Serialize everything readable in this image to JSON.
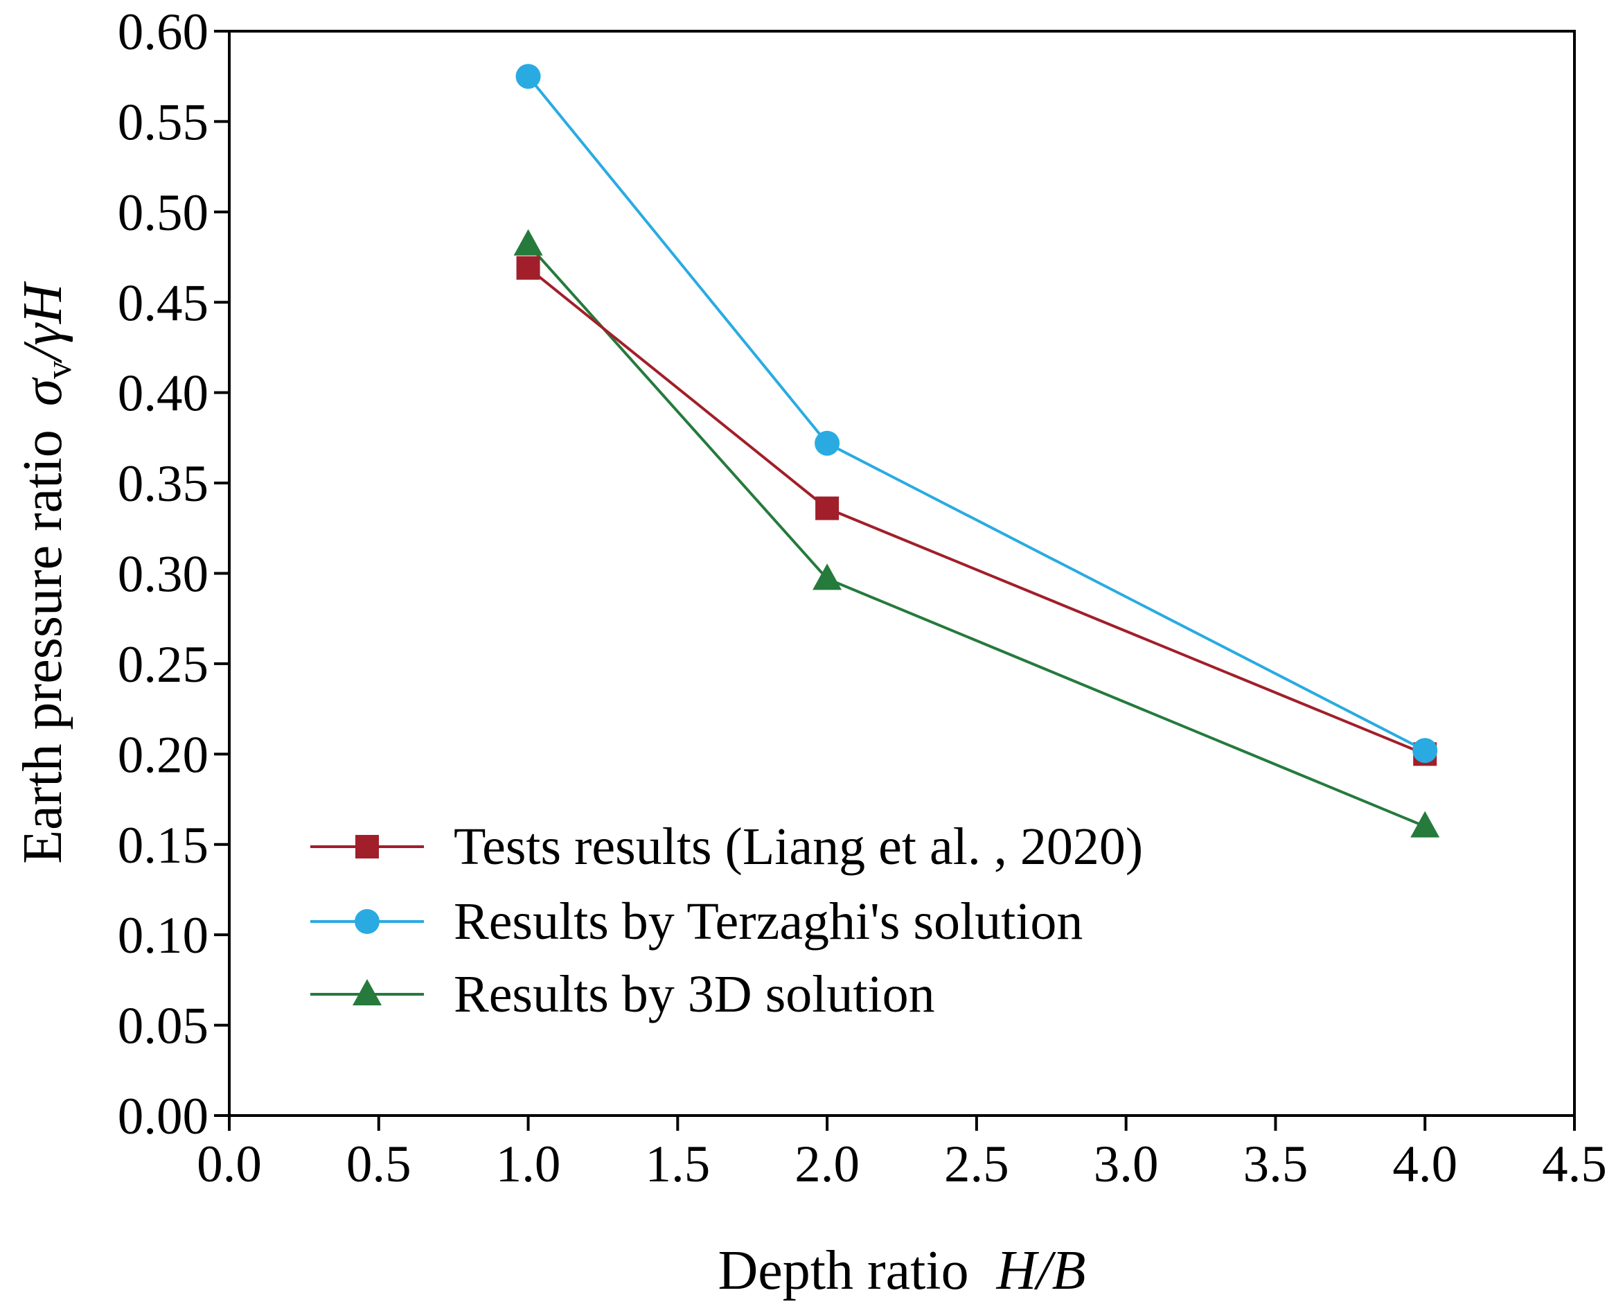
{
  "chart_data": {
    "type": "line",
    "title": "",
    "xlabel": {
      "text": "Depth ratio",
      "math": "H/B"
    },
    "ylabel": {
      "text": "Earth pressure ratio",
      "math_sigma": "σ",
      "math_sub": "v",
      "math_rest": "/γH"
    },
    "xlim": [
      0.0,
      4.5
    ],
    "ylim": [
      0.0,
      0.6
    ],
    "x_ticks": [
      "0.0",
      "0.5",
      "1.0",
      "1.5",
      "2.0",
      "2.5",
      "3.0",
      "3.5",
      "4.0",
      "4.5"
    ],
    "y_ticks": [
      "0.00",
      "0.05",
      "0.10",
      "0.15",
      "0.20",
      "0.25",
      "0.30",
      "0.35",
      "0.40",
      "0.45",
      "0.50",
      "0.55",
      "0.60"
    ],
    "x": [
      1.0,
      2.0,
      4.0
    ],
    "series": [
      {
        "name": "Tests results  (Liang et al. , 2020)",
        "values": [
          0.469,
          0.336,
          0.2
        ],
        "color": "#a11f2a",
        "marker": "square"
      },
      {
        "name": "Results by Terzaghi's solution",
        "values": [
          0.575,
          0.372,
          0.202
        ],
        "color": "#29abe2",
        "marker": "circle"
      },
      {
        "name": "Results by 3D solution",
        "values": [
          0.482,
          0.297,
          0.16
        ],
        "color": "#257a3c",
        "marker": "triangle"
      }
    ],
    "legend_position": "bottom-left",
    "grid": false
  }
}
